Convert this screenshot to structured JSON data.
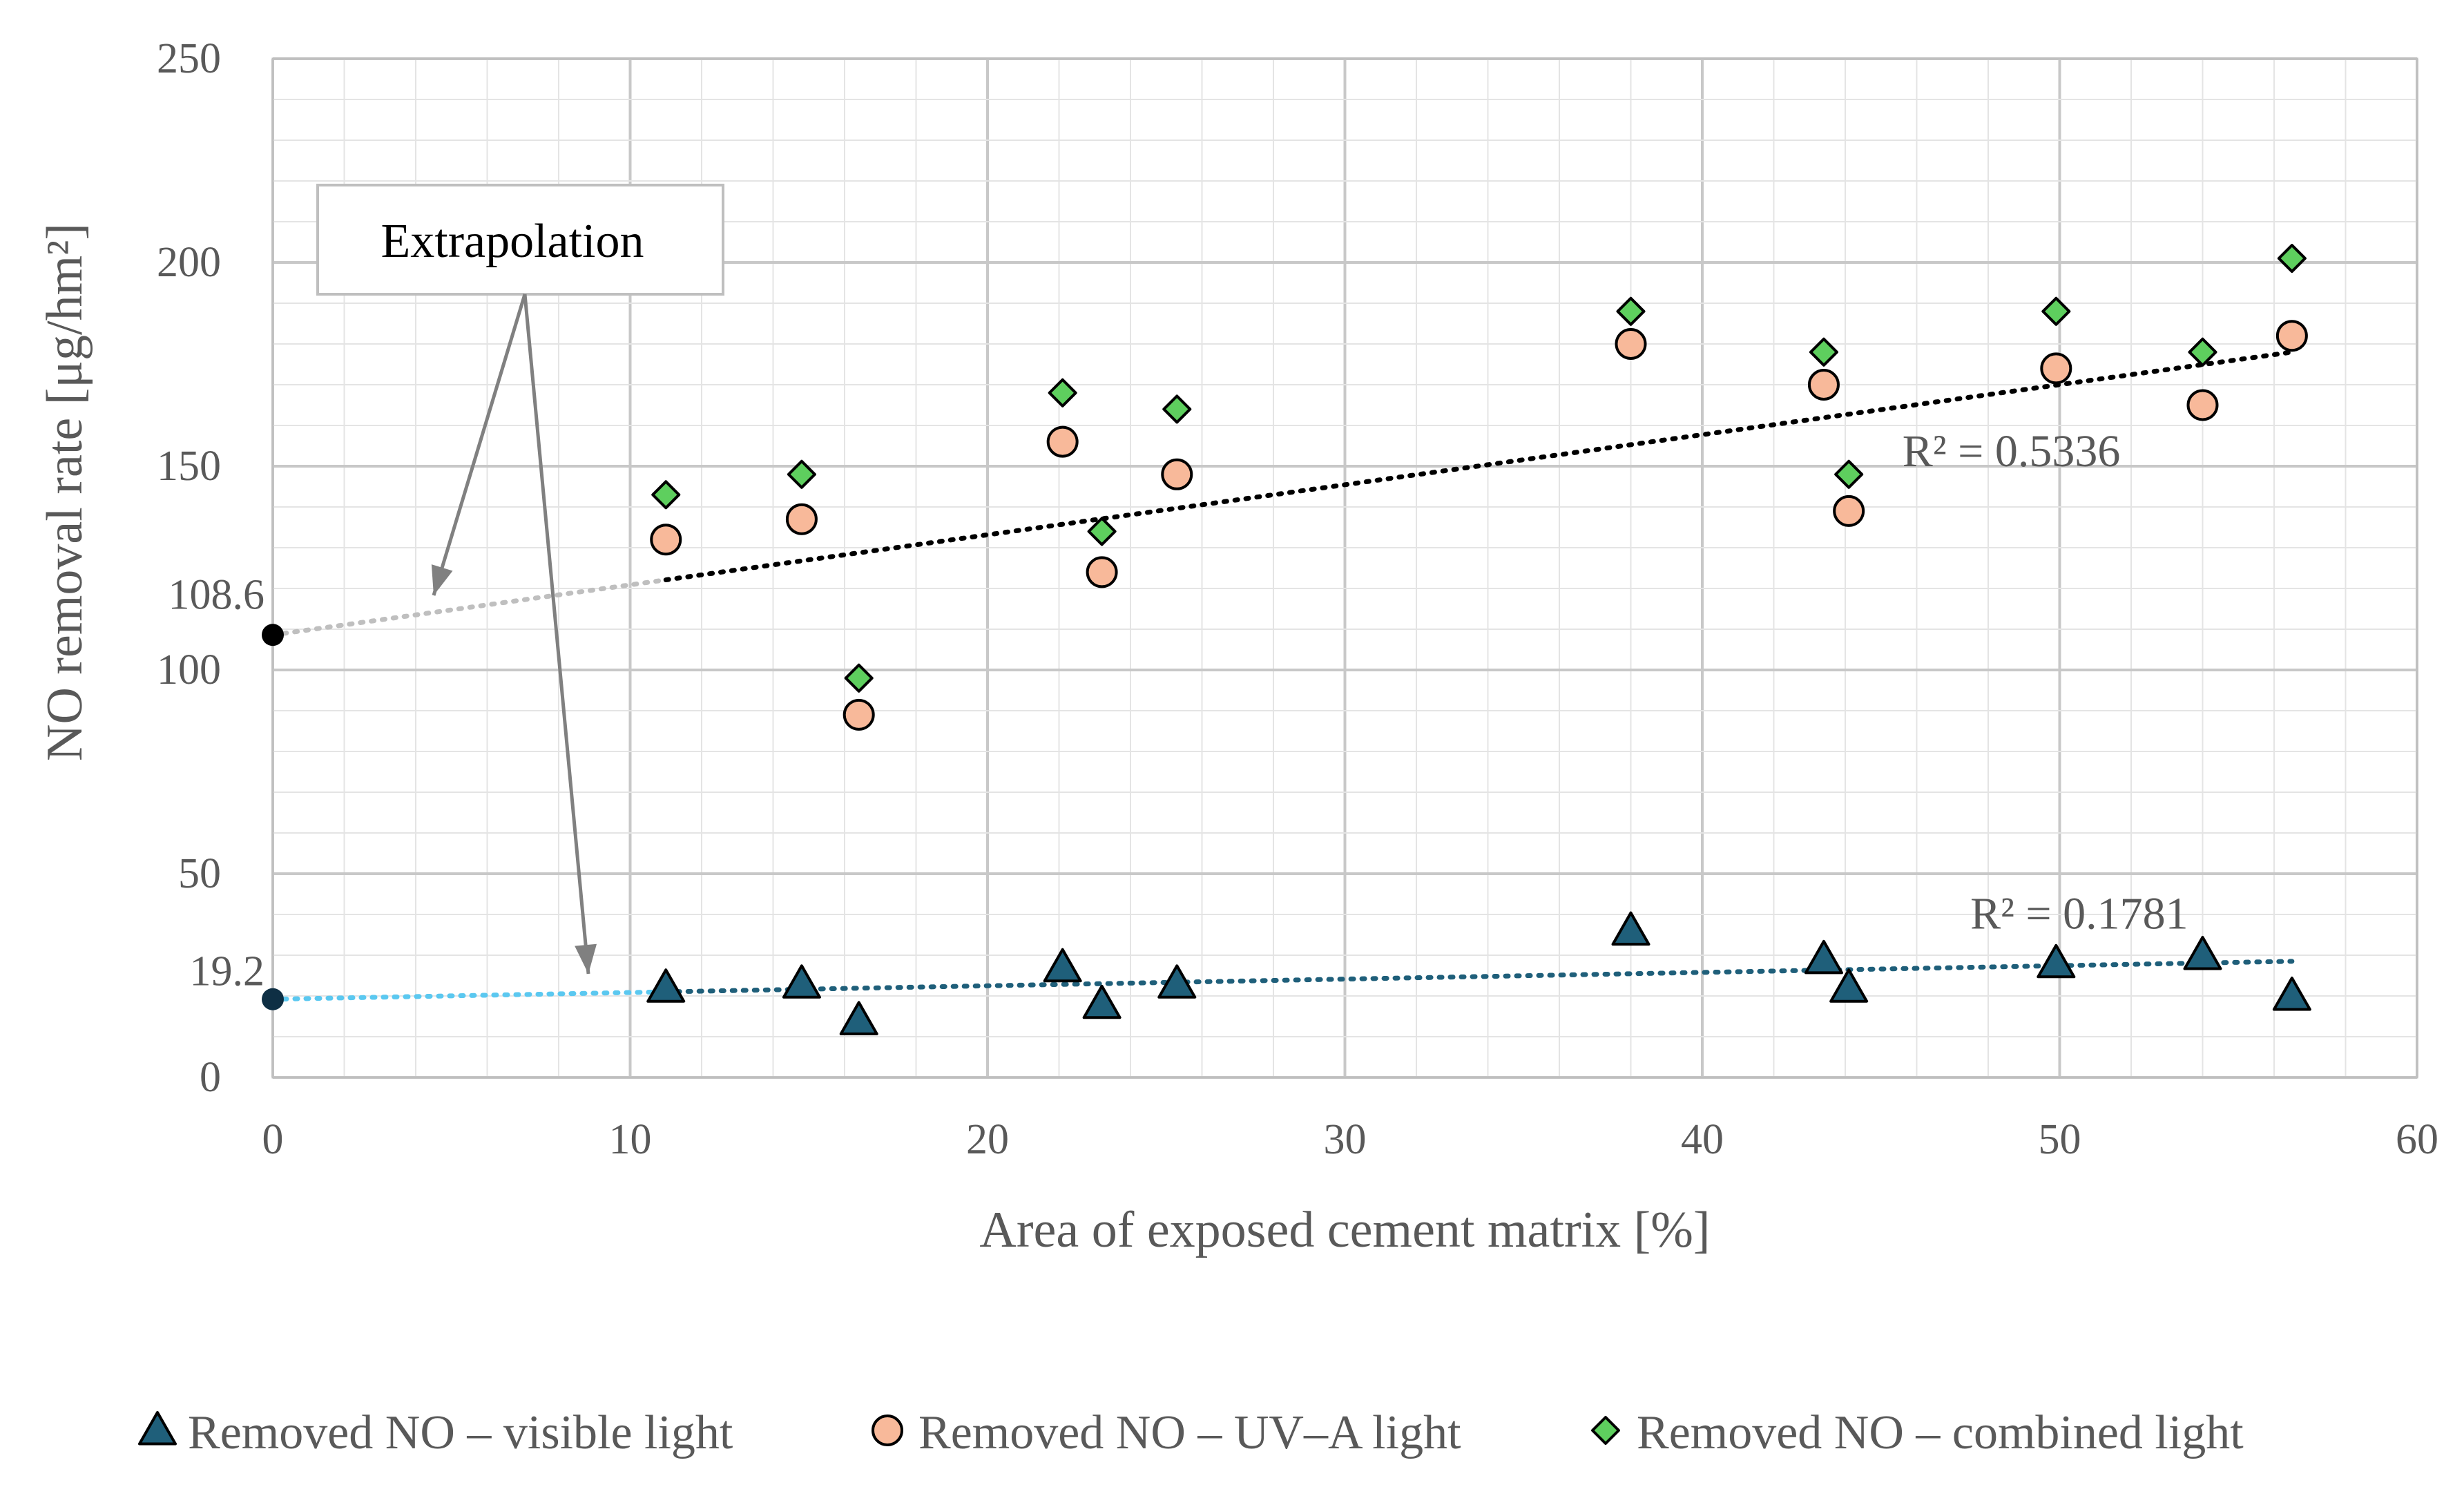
{
  "chart_data": {
    "type": "scatter",
    "title": "",
    "xlabel": "Area of exposed cement matrix [%]",
    "ylabel": "NO removal rate [μg/hm²]",
    "xlim": [
      0,
      60
    ],
    "ylim": [
      0,
      250
    ],
    "xticks": [
      0,
      10,
      20,
      30,
      40,
      50,
      60
    ],
    "yticks": [
      0,
      50,
      100,
      150,
      200,
      250
    ],
    "ytick_labels": [
      "0",
      "50",
      "100",
      "150",
      "200",
      "250"
    ],
    "grid": true,
    "legend_position": "bottom",
    "series": [
      {
        "name": "Removed NO – visible light",
        "marker": "triangle",
        "color": "#1f5f7a",
        "x": [
          11.0,
          14.8,
          16.4,
          22.1,
          23.2,
          25.3,
          38.0,
          43.4,
          44.1,
          49.9,
          54.0,
          56.5
        ],
        "y": [
          22,
          23,
          14,
          27,
          18,
          23,
          36,
          29,
          22,
          28,
          30,
          20
        ]
      },
      {
        "name": "Removed NO – UV–A light",
        "marker": "circle",
        "color": "#f8b99a",
        "x": [
          11.0,
          14.8,
          16.4,
          22.1,
          23.2,
          25.3,
          38.0,
          43.4,
          44.1,
          49.9,
          54.0,
          56.5
        ],
        "y": [
          132,
          137,
          89,
          156,
          124,
          148,
          180,
          170,
          139,
          174,
          165,
          182
        ]
      },
      {
        "name": "Removed NO – combined light",
        "marker": "diamond",
        "color": "#5ecf5e",
        "x": [
          11.0,
          14.8,
          16.4,
          22.1,
          23.2,
          25.3,
          38.0,
          43.4,
          44.1,
          49.9,
          54.0,
          56.5
        ],
        "y": [
          143,
          148,
          98,
          168,
          134,
          164,
          188,
          178,
          148,
          188,
          178,
          201
        ]
      }
    ],
    "trendlines": [
      {
        "name": "visible light trend",
        "intercept": 19.2,
        "x_end": 56.5,
        "y_end": 28.5,
        "extrapolate_to": 11.0,
        "color": "#1f5f7a",
        "extrapolation_color": "#5bc8f0",
        "r2_label": "R² = 0.1781"
      },
      {
        "name": "UV-A light trend",
        "intercept": 108.6,
        "x_end": 56.5,
        "y_end": 178.0,
        "extrapolate_to": 11.0,
        "color": "#000000",
        "extrapolation_color": "#bfbfbf",
        "r2_label": "R² = 0.5336"
      }
    ],
    "intercept_labels": [
      "108.6",
      "19.2"
    ],
    "annotation": {
      "text": "Extrapolation"
    }
  }
}
